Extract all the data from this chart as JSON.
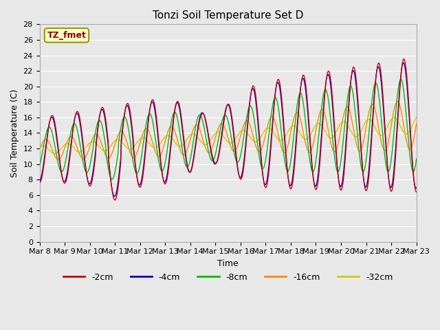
{
  "title": "Tonzi Soil Temperature Set D",
  "xlabel": "Time",
  "ylabel": "Soil Temperature (C)",
  "legend_label": "TZ_fmet",
  "series_names": [
    "-2cm",
    "-4cm",
    "-8cm",
    "-16cm",
    "-32cm"
  ],
  "series_colors": [
    "#cc0000",
    "#0000cc",
    "#00bb00",
    "#ff8800",
    "#cccc00"
  ],
  "ylim": [
    0,
    28
  ],
  "yticks": [
    0,
    2,
    4,
    6,
    8,
    10,
    12,
    14,
    16,
    18,
    20,
    22,
    24,
    26,
    28
  ],
  "xtick_labels": [
    "Mar 8",
    "Mar 9",
    "Mar 10",
    "Mar 11",
    "Mar 12",
    "Mar 13",
    "Mar 14",
    "Mar 15",
    "Mar 16",
    "Mar 17",
    "Mar 18",
    "Mar 19",
    "Mar 20",
    "Mar 21",
    "Mar 22",
    "Mar 23"
  ],
  "n_days": 15,
  "bg_color": "#e8e8e8",
  "grid_color": "#ffffff",
  "annotation_box_facecolor": "#ffffcc",
  "annotation_text_color": "#880000",
  "annotation_border_color": "#999900",
  "figsize": [
    6.4,
    4.8
  ],
  "dpi": 100
}
